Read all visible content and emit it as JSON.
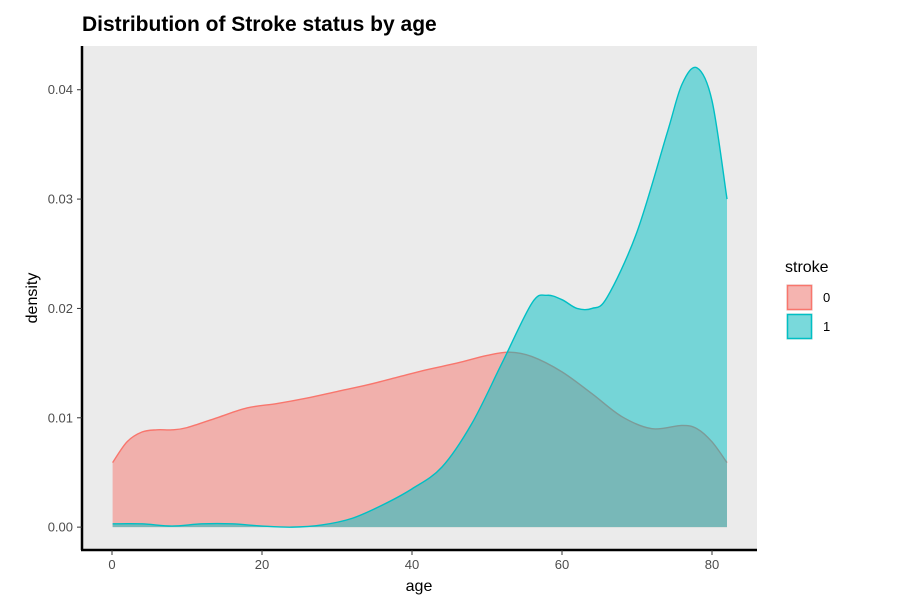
{
  "chart_data": {
    "type": "area",
    "title": "Distribution of Stroke status by age",
    "xlabel": "age",
    "ylabel": "density",
    "xlim": [
      -4,
      86
    ],
    "ylim": [
      -0.002,
      0.044
    ],
    "xticks": [
      0,
      20,
      40,
      60,
      80
    ],
    "yticks": [
      0.0,
      0.01,
      0.02,
      0.03,
      0.04
    ],
    "ytick_labels": [
      "0.00",
      "0.01",
      "0.02",
      "0.03",
      "0.04"
    ],
    "grid": false,
    "legend": {
      "title": "stroke",
      "position": "right"
    },
    "series": [
      {
        "name": "0",
        "color": "#F8766D",
        "x": [
          0.08,
          2,
          4,
          6,
          8,
          10,
          14,
          18,
          22,
          26,
          30,
          34,
          38,
          42,
          46,
          50,
          53,
          56,
          60,
          64,
          68,
          72,
          76,
          78,
          80,
          82
        ],
        "y": [
          0.0059,
          0.0078,
          0.0087,
          0.0089,
          0.0089,
          0.0091,
          0.01,
          0.0109,
          0.0113,
          0.0118,
          0.0124,
          0.013,
          0.0137,
          0.0144,
          0.015,
          0.0157,
          0.016,
          0.0156,
          0.0142,
          0.0122,
          0.0101,
          0.009,
          0.0093,
          0.009,
          0.0078,
          0.0059
        ]
      },
      {
        "name": "1",
        "color": "#00BFC4",
        "x": [
          0.08,
          4,
          8,
          12,
          16,
          20,
          24,
          28,
          32,
          36,
          40,
          44,
          48,
          52,
          56,
          58,
          60,
          62,
          64,
          66,
          70,
          74,
          76,
          78,
          80,
          82
        ],
        "y": [
          0.0003,
          0.0003,
          0.0001,
          0.0003,
          0.0003,
          0.0001,
          0.0,
          0.0002,
          0.0008,
          0.002,
          0.0035,
          0.0055,
          0.0095,
          0.015,
          0.0205,
          0.0212,
          0.0208,
          0.02,
          0.02,
          0.021,
          0.027,
          0.036,
          0.0405,
          0.042,
          0.039,
          0.03
        ]
      }
    ]
  }
}
